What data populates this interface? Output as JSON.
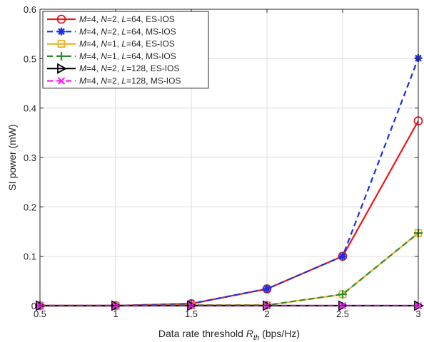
{
  "chart_data": {
    "type": "line",
    "xlabel": "Data rate threshold R_th (bps/Hz)",
    "xlabel_parts": {
      "prefix": "Data rate threshold ",
      "var": "R",
      "sub": "th",
      "suffix": " (bps/Hz)"
    },
    "ylabel": "SI power (mW)",
    "xlim": [
      0.5,
      3
    ],
    "ylim": [
      0,
      0.6
    ],
    "x": [
      0.5,
      1,
      1.5,
      2,
      2.5,
      3
    ],
    "xticks": [
      "0.5",
      "1",
      "1.5",
      "2",
      "2.5",
      "3"
    ],
    "yticks": [
      "0",
      "0.1",
      "0.2",
      "0.3",
      "0.4",
      "0.5",
      "0.6"
    ],
    "grid": true,
    "legend_position": "top-left",
    "series": [
      {
        "name": "M=4, N=2, L=64, ES-IOS",
        "params": {
          "M": "4",
          "N": "2",
          "L": "64",
          "scheme": "ES-IOS"
        },
        "color": "#e6191d",
        "dash": "solid",
        "marker": "circle",
        "values": [
          0,
          0,
          0.004,
          0.034,
          0.1,
          0.374
        ]
      },
      {
        "name": "M=4, N=2, L=64, MS-IOS",
        "params": {
          "M": "4",
          "N": "2",
          "L": "64",
          "scheme": "MS-IOS"
        },
        "color": "#1a2ee6",
        "dash": "dashed",
        "marker": "asterisk",
        "values": [
          0,
          0,
          0.004,
          0.034,
          0.1,
          0.501
        ]
      },
      {
        "name": "M=4, N=1, L=64, ES-IOS",
        "params": {
          "M": "4",
          "N": "1",
          "L": "64",
          "scheme": "ES-IOS"
        },
        "color": "#edb120",
        "dash": "solid",
        "marker": "square",
        "values": [
          0,
          0,
          0.001,
          0.001,
          0.023,
          0.147
        ]
      },
      {
        "name": "M=4, N=1, L=64, MS-IOS",
        "params": {
          "M": "4",
          "N": "1",
          "L": "64",
          "scheme": "MS-IOS"
        },
        "color": "#2e8b2e",
        "dash": "dashed",
        "marker": "plus",
        "values": [
          0,
          0,
          0.001,
          0.001,
          0.023,
          0.147
        ]
      },
      {
        "name": "M=4, N=2, L=128, ES-IOS",
        "params": {
          "M": "4",
          "N": "2",
          "L": "128",
          "scheme": "ES-IOS"
        },
        "color": "#000000",
        "dash": "solid",
        "marker": "triangle-right",
        "values": [
          0,
          0,
          0,
          0,
          0,
          0
        ]
      },
      {
        "name": "M=4, N=2, L=128, MS-IOS",
        "params": {
          "M": "4",
          "N": "2",
          "L": "128",
          "scheme": "MS-IOS"
        },
        "color": "#ff1aff",
        "dash": "dashed",
        "marker": "x",
        "values": [
          0,
          0,
          0,
          0,
          0,
          0
        ]
      }
    ]
  }
}
